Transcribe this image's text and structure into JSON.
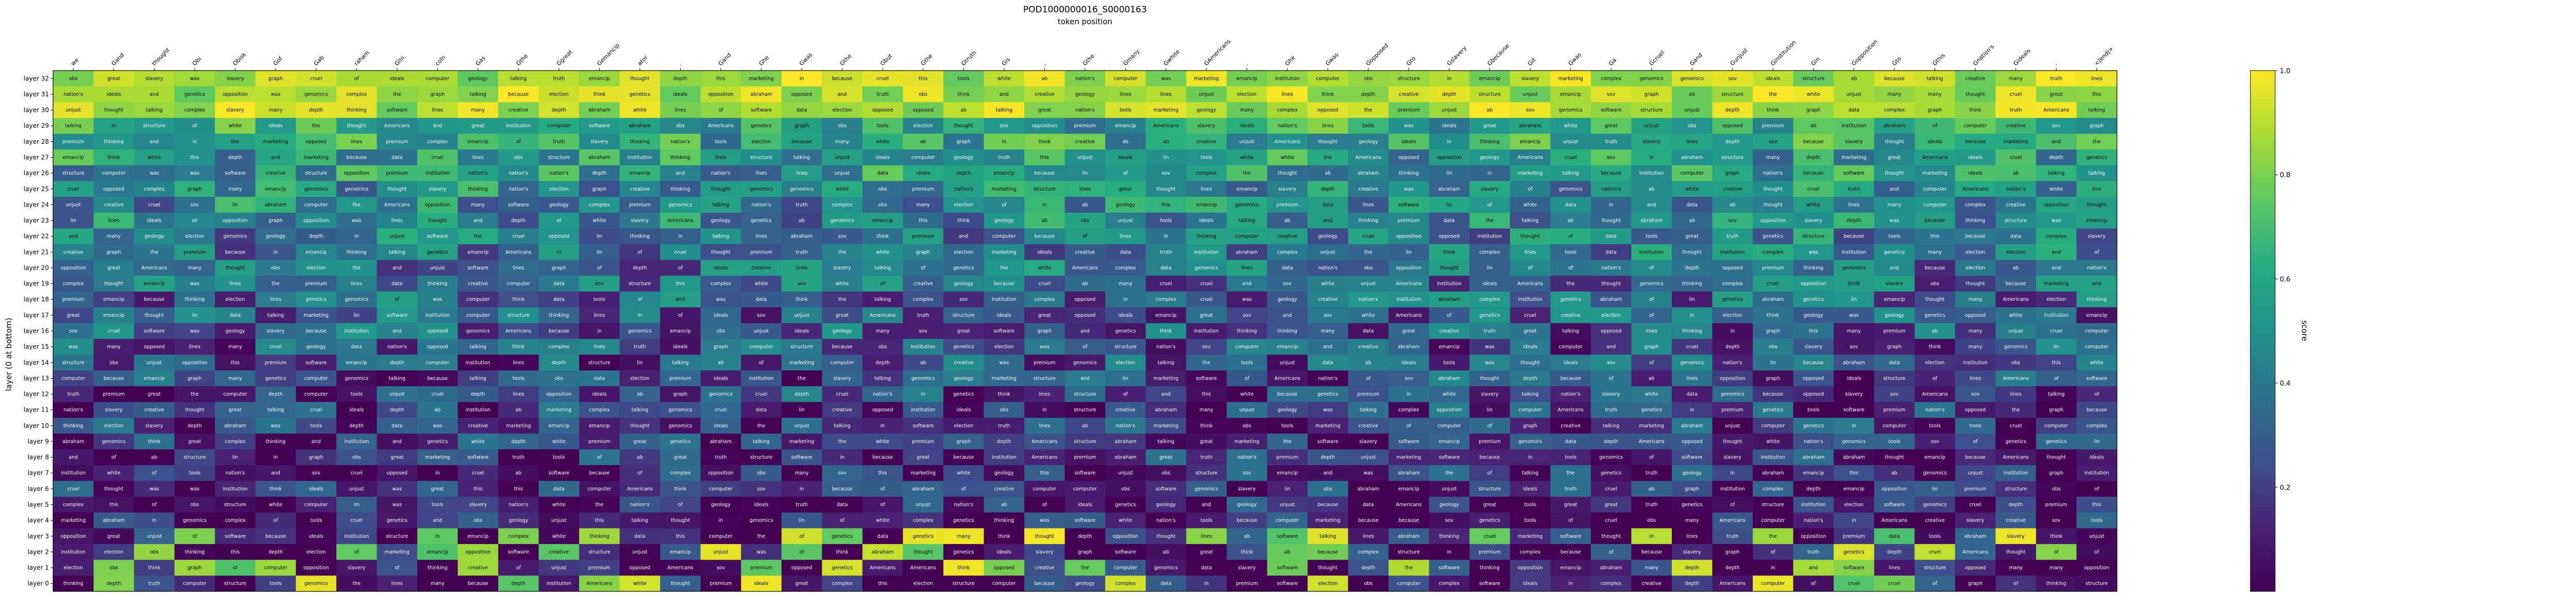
{
  "chart_data": {
    "type": "heatmap",
    "title": "POD1000000016_S0000163",
    "xlabel": "token position",
    "ylabel": "layer (0 at bottom)",
    "colorbar_label": "score",
    "colorbar_ticks": [
      "0.2",
      "0.4",
      "0.6",
      "0.8",
      "1.0"
    ],
    "vmin": 0.0,
    "vmax": 1.0,
    "colormap": "viridis",
    "x_tokens": [
      "we",
      "Gand",
      "thought",
      "Obi",
      "Obisk",
      "Gof",
      "Gab",
      "raham",
      "Glin",
      "coln",
      "Gas",
      "Gthe",
      "Ggreat",
      "Gemancip",
      "ator",
      ".",
      "Gand",
      "Ghe",
      "Gwas",
      "Gthe",
      "Gbut",
      "Gthe",
      "Gtruth",
      "Gis",
      ",",
      "Gthe",
      "Gmany",
      "Gwhite",
      "GAmericans",
      ".",
      "Ghe",
      "Gwas",
      "Gopposed",
      "Gto",
      "Gslavery",
      "Gbecause",
      "Git",
      "Gwas",
      "Ga",
      "Gcruel",
      "Gand",
      "Gunjust",
      "Ginstitution",
      "Gin",
      "Gopposition",
      "Gto",
      "Gthis",
      "Gnation's",
      "Gideals",
      ".",
      "<|end|>"
    ],
    "y_layers": [
      "layer 32",
      "layer 31",
      "layer 30",
      "layer 29",
      "layer 28",
      "layer 27",
      "layer 26",
      "layer 25",
      "layer 24",
      "layer 23",
      "layer 22",
      "layer 21",
      "layer 20",
      "layer 19",
      "layer 18",
      "layer 17",
      "layer 16",
      "layer 15",
      "layer 14",
      "layer 13",
      "layer 12",
      "layer 11",
      "layer 10",
      "layer 9",
      "layer 8",
      "layer 7",
      "layer 6",
      "layer 5",
      "layer 4",
      "layer 3",
      "layer 2",
      "layer 1",
      "layer 0"
    ],
    "vocab": [
      "Gsov",
      "Ggeology",
      "Gpremium",
      "Gtalking",
      "Gmarketing",
      "GAmericans",
      "Gcomputer",
      "Glines",
      "Gobs",
      "Gopposition",
      "Gopposed",
      "Gslavery",
      "Gand",
      "Gthe",
      "Gin",
      "Glin",
      "Gwas",
      "Gof",
      "Gab",
      "Gof",
      "Gthis",
      "Gideals",
      "Gtruth",
      "Gnation's",
      "Gmany",
      "Gwhite",
      "Gthink",
      "Gthinking",
      "Gthought",
      "Gcruel",
      "Gunjust",
      "Ginstitution",
      "Gbecause",
      "Ggreat",
      "Gemancip",
      "Gabraham",
      "Gcomplex",
      "Gstructure",
      "Gdepth",
      "Ggraph",
      "Gdata",
      "Gtools",
      "Gcreative",
      "Ggenomics",
      "Ggenetics",
      "Gsoftware",
      "Gelection"
    ]
  }
}
